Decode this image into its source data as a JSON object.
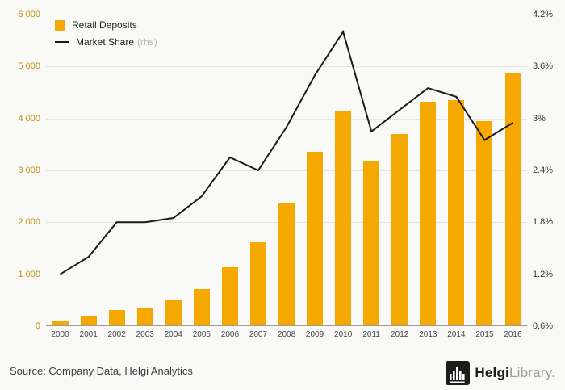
{
  "chart_data": {
    "type": "bar+line",
    "categories": [
      "2000",
      "2001",
      "2002",
      "2003",
      "2004",
      "2005",
      "2006",
      "2007",
      "2008",
      "2009",
      "2010",
      "2011",
      "2012",
      "2013",
      "2014",
      "2015",
      "2016"
    ],
    "series": [
      {
        "name": "Retail Deposits",
        "type": "bar",
        "axis": "left",
        "color": "#F5A800",
        "values": [
          100,
          180,
          290,
          340,
          490,
          700,
          1120,
          1600,
          2360,
          3340,
          4120,
          3160,
          3690,
          4300,
          4340,
          3940,
          4870
        ]
      },
      {
        "name": "Market Share",
        "type": "line",
        "axis": "right",
        "color": "#1a1a1a",
        "values": [
          1.2,
          1.4,
          1.8,
          1.8,
          1.85,
          2.1,
          2.55,
          2.4,
          2.9,
          3.5,
          4.0,
          2.85,
          3.1,
          3.35,
          3.25,
          2.75,
          2.95
        ]
      }
    ],
    "left_axis": {
      "min": 0,
      "max": 6000,
      "step": 1000,
      "tick_labels": [
        "0",
        "1 000",
        "2 000",
        "3 000",
        "4 000",
        "5 000",
        "6 000"
      ]
    },
    "right_axis": {
      "min": 0.6,
      "max": 4.2,
      "step": 0.6,
      "tick_labels": [
        "0.6%",
        "1.2%",
        "1.8%",
        "2.4%",
        "3%",
        "3.6%",
        "4.2%"
      ]
    },
    "legend": [
      {
        "label": "Retail Deposits",
        "suffix": ""
      },
      {
        "label": "Market Share",
        "suffix": "(rhs)"
      }
    ],
    "grid": true,
    "legend_position": "top-left"
  },
  "footer": {
    "source": "Source: Company Data, Helgi Analytics"
  },
  "logo": {
    "text_primary": "Helgi",
    "text_secondary": "Library."
  }
}
